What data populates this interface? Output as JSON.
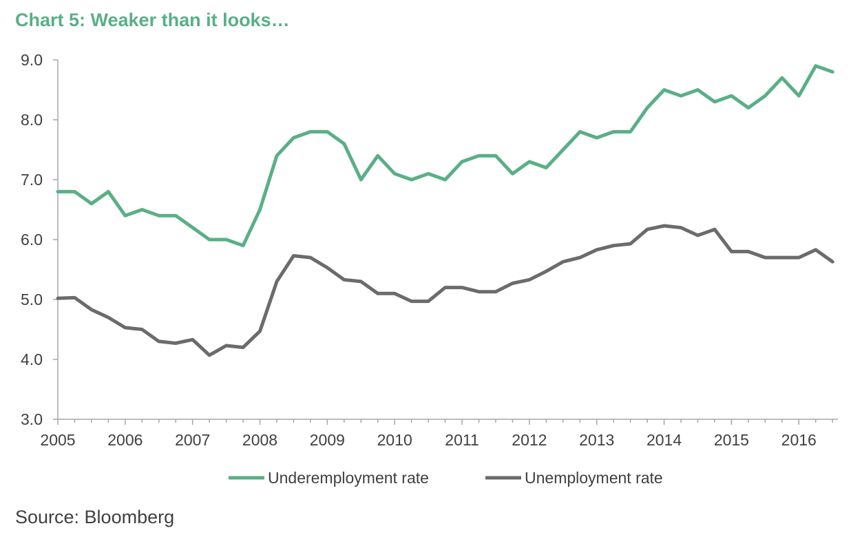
{
  "title": "Chart 5: Weaker than it looks…",
  "source": "Source: Bloomberg",
  "colors": {
    "underemployment": "#5aaf86",
    "unemployment": "#6b6b6b",
    "axis": "#a6a6a6",
    "text": "#404040"
  },
  "chart_data": {
    "type": "line",
    "title": "Chart 5: Weaker than it looks…",
    "xlabel": "",
    "ylabel": "",
    "xlim": [
      2005.0,
      2016.58
    ],
    "ylim": [
      3.0,
      9.0
    ],
    "x_ticks": [
      "2005",
      "2006",
      "2007",
      "2008",
      "2009",
      "2010",
      "2011",
      "2012",
      "2013",
      "2014",
      "2015",
      "2016"
    ],
    "y_ticks": [
      "3.0",
      "4.0",
      "5.0",
      "6.0",
      "7.0",
      "8.0",
      "9.0"
    ],
    "grid": false,
    "legend_position": "bottom",
    "x": [
      2005.0,
      2005.25,
      2005.5,
      2005.75,
      2006.0,
      2006.25,
      2006.5,
      2006.75,
      2007.0,
      2007.25,
      2007.5,
      2007.75,
      2008.0,
      2008.25,
      2008.5,
      2008.75,
      2009.0,
      2009.25,
      2009.5,
      2009.75,
      2010.0,
      2010.25,
      2010.5,
      2010.75,
      2011.0,
      2011.25,
      2011.5,
      2011.75,
      2012.0,
      2012.25,
      2012.5,
      2012.75,
      2013.0,
      2013.25,
      2013.5,
      2013.75,
      2014.0,
      2014.25,
      2014.5,
      2014.75,
      2015.0,
      2015.25,
      2015.5,
      2015.75,
      2016.0,
      2016.25,
      2016.5
    ],
    "series": [
      {
        "name": "Underemployment rate",
        "values": [
          6.8,
          6.8,
          6.6,
          6.8,
          6.4,
          6.5,
          6.4,
          6.4,
          6.2,
          6.0,
          6.0,
          5.9,
          6.5,
          7.4,
          7.7,
          7.8,
          7.8,
          7.6,
          7.0,
          7.4,
          7.1,
          7.0,
          7.1,
          7.0,
          7.3,
          7.4,
          7.4,
          7.1,
          7.3,
          7.2,
          7.5,
          7.8,
          7.7,
          7.8,
          7.8,
          8.2,
          8.5,
          8.4,
          8.5,
          8.3,
          8.4,
          8.2,
          8.4,
          8.7,
          8.4,
          8.9,
          8.8
        ]
      },
      {
        "name": "Unemployment rate",
        "values": [
          5.02,
          5.03,
          4.83,
          4.7,
          4.53,
          4.5,
          4.3,
          4.27,
          4.33,
          4.07,
          4.23,
          4.2,
          4.47,
          5.3,
          5.73,
          5.7,
          5.53,
          5.33,
          5.3,
          5.1,
          5.1,
          4.97,
          4.97,
          5.2,
          5.2,
          5.13,
          5.13,
          5.27,
          5.33,
          5.47,
          5.63,
          5.7,
          5.83,
          5.9,
          5.93,
          6.17,
          6.23,
          6.2,
          6.07,
          6.17,
          5.8,
          5.8,
          5.7,
          5.7,
          5.7,
          5.83,
          5.63
        ]
      }
    ]
  }
}
